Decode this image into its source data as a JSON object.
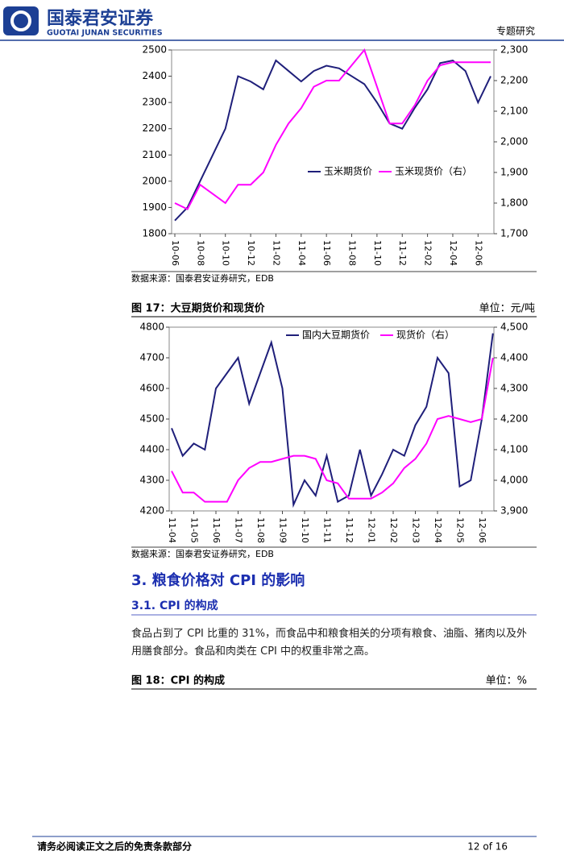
{
  "header": {
    "brand_cn": "国泰君安证券",
    "brand_en": "GUOTAI JUNAN SECURITIES",
    "report_type": "专题研究"
  },
  "chart_data": [
    {
      "type": "line",
      "categories": [
        "10-06",
        null,
        "10-08",
        null,
        "10-10",
        null,
        "10-12",
        null,
        "11-02",
        null,
        "11-04",
        null,
        "11-06",
        null,
        "11-08",
        null,
        "11-10",
        null,
        "11-12",
        null,
        "12-02",
        null,
        "12-04",
        null,
        "12-06",
        null
      ],
      "series": [
        {
          "name": "玉米期货价",
          "color": "#1f1f7a",
          "values": [
            1850,
            1900,
            2000,
            2100,
            2200,
            2400,
            2380,
            2350,
            2460,
            2420,
            2380,
            2420,
            2440,
            2430,
            2400,
            2370,
            2300,
            2220,
            2200,
            2280,
            2350,
            2450,
            2460,
            2420,
            2300,
            2400
          ]
        },
        {
          "name": "玉米现货价（右）",
          "color": "#ff00ff",
          "axis": "y2",
          "values": [
            1800,
            1780,
            1860,
            1830,
            1800,
            1860,
            1860,
            1900,
            1990,
            2060,
            2110,
            2180,
            2200,
            2200,
            2250,
            2300,
            2180,
            2060,
            2060,
            2120,
            2200,
            2250,
            2260,
            2260,
            2260,
            2260
          ]
        }
      ],
      "ylim": [
        1800,
        2500
      ],
      "yticks": [
        1800,
        1900,
        2000,
        2100,
        2200,
        2300,
        2400,
        2500
      ],
      "y2lim": [
        1700,
        2300
      ],
      "y2ticks": [
        {
          "value": 1700,
          "label": "1,700"
        },
        {
          "value": 1800,
          "label": "1,800"
        },
        {
          "value": 1900,
          "label": "1,900"
        },
        {
          "value": 2000,
          "label": "2,000"
        },
        {
          "value": 2100,
          "label": "2,100"
        },
        {
          "value": 2200,
          "label": "2,200"
        },
        {
          "value": 2300,
          "label": "2,300"
        }
      ],
      "source": "数据来源：国泰君安证券研究，EDB"
    },
    {
      "type": "line",
      "title": "图 17：大豆期货价和现货价",
      "unit": "单位：元/吨",
      "categories": [
        "11-04",
        null,
        "11-05",
        null,
        "11-06",
        null,
        "11-07",
        null,
        "11-08",
        null,
        "11-09",
        null,
        "11-10",
        null,
        "11-11",
        null,
        "11-12",
        null,
        "12-01",
        null,
        "12-02",
        null,
        "12-03",
        null,
        "12-04",
        null,
        "12-05",
        null,
        "12-06",
        null
      ],
      "series": [
        {
          "name": "国内大豆期货价",
          "color": "#1f1f7a",
          "values": [
            4470,
            4380,
            4420,
            4400,
            4600,
            4650,
            4700,
            4550,
            4650,
            4750,
            4600,
            4220,
            4300,
            4250,
            4380,
            4230,
            4250,
            4400,
            4250,
            4320,
            4400,
            4380,
            4480,
            4540,
            4700,
            4650,
            4280,
            4300,
            4500,
            4780
          ]
        },
        {
          "name": "现货价（右）",
          "color": "#ff00ff",
          "axis": "y2",
          "values": [
            4030,
            3960,
            3960,
            3930,
            3930,
            3930,
            4000,
            4040,
            4060,
            4060,
            4070,
            4080,
            4080,
            4070,
            4000,
            3990,
            3940,
            3940,
            3940,
            3960,
            3990,
            4040,
            4070,
            4120,
            4200,
            4210,
            4200,
            4190,
            4200,
            4400
          ]
        }
      ],
      "ylim": [
        4200,
        4800
      ],
      "yticks": [
        4200,
        4300,
        4400,
        4500,
        4600,
        4700,
        4800
      ],
      "y2lim": [
        3900,
        4500
      ],
      "y2ticks": [
        {
          "value": 3900,
          "label": "3,900"
        },
        {
          "value": 4000,
          "label": "4,000"
        },
        {
          "value": 4100,
          "label": "4,100"
        },
        {
          "value": 4200,
          "label": "4,200"
        },
        {
          "value": 4300,
          "label": "4,300"
        },
        {
          "value": 4400,
          "label": "4,400"
        },
        {
          "value": 4500,
          "label": "4,500"
        }
      ],
      "source": "数据来源：国泰君安证券研究，EDB"
    }
  ],
  "section": {
    "heading": "3. 粮食价格对 CPI 的影响",
    "subheading": "3.1. CPI 的构成",
    "paragraph": "食品占到了 CPI 比重的 31%，而食品中和粮食相关的分项有粮食、油脂、猪肉以及外用膳食部分。食品和肉类在 CPI 中的权重非常之高。"
  },
  "figure18": {
    "caption": "图 18：CPI 的构成",
    "unit": "单位：%"
  },
  "footer": {
    "disclaimer": "请务必阅读正文之后的免责条款部分",
    "page": "12 of 16"
  }
}
